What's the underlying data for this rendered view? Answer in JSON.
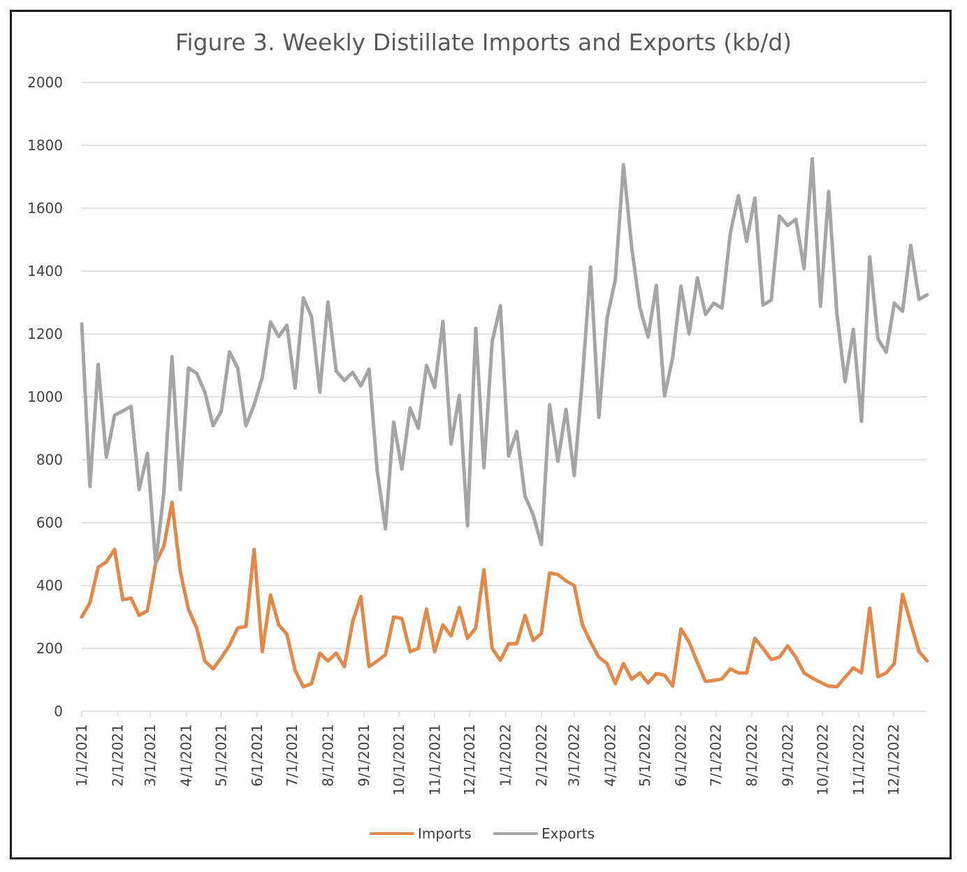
{
  "chart_data": {
    "type": "line",
    "title": "Figure 3. Weekly Distillate Imports and Exports (kb/d)",
    "xlabel": "",
    "ylabel": "",
    "ylim": [
      0,
      2000
    ],
    "yticks": [
      0,
      200,
      400,
      600,
      800,
      1000,
      1200,
      1400,
      1600,
      1800,
      2000
    ],
    "x_start_week": 0,
    "x_end_week": 104,
    "x_tick_labels": [
      {
        "label": "1/1/2021",
        "week": 0
      },
      {
        "label": "2/1/2021",
        "week": 4.43
      },
      {
        "label": "3/1/2021",
        "week": 8.43
      },
      {
        "label": "4/1/2021",
        "week": 12.86
      },
      {
        "label": "5/1/2021",
        "week": 17.14
      },
      {
        "label": "6/1/2021",
        "week": 21.57
      },
      {
        "label": "7/1/2021",
        "week": 25.86
      },
      {
        "label": "8/1/2021",
        "week": 30.29
      },
      {
        "label": "9/1/2021",
        "week": 34.71
      },
      {
        "label": "10/1/2021",
        "week": 39.0
      },
      {
        "label": "11/1/2021",
        "week": 43.43
      },
      {
        "label": "12/1/2021",
        "week": 47.71
      },
      {
        "label": "1/1/2022",
        "week": 52.14
      },
      {
        "label": "2/1/2022",
        "week": 56.57
      },
      {
        "label": "3/1/2022",
        "week": 60.57
      },
      {
        "label": "4/1/2022",
        "week": 65.0
      },
      {
        "label": "5/1/2022",
        "week": 69.29
      },
      {
        "label": "6/1/2022",
        "week": 73.71
      },
      {
        "label": "7/1/2022",
        "week": 78.0
      },
      {
        "label": "8/1/2022",
        "week": 82.43
      },
      {
        "label": "9/1/2022",
        "week": 86.86
      },
      {
        "label": "10/1/2022",
        "week": 91.14
      },
      {
        "label": "11/1/2022",
        "week": 95.57
      },
      {
        "label": "12/1/2022",
        "week": 99.86
      }
    ],
    "series": [
      {
        "name": "Imports",
        "color": "#e0894a",
        "values": [
          300,
          345,
          458,
          475,
          515,
          355,
          360,
          305,
          320,
          470,
          525,
          665,
          445,
          325,
          265,
          160,
          135,
          170,
          210,
          265,
          270,
          515,
          190,
          370,
          275,
          245,
          130,
          78,
          88,
          185,
          160,
          185,
          142,
          285,
          365,
          142,
          160,
          180,
          300,
          295,
          190,
          200,
          325,
          190,
          275,
          240,
          330,
          232,
          265,
          450,
          200,
          162,
          215,
          215,
          305,
          225,
          248,
          440,
          435,
          415,
          400,
          275,
          220,
          172,
          152,
          88,
          152,
          102,
          122,
          90,
          120,
          115,
          80,
          262,
          220,
          155,
          95,
          98,
          103,
          135,
          122,
          122,
          232,
          200,
          165,
          172,
          208,
          172,
          122,
          106,
          92,
          80,
          78,
          108,
          138,
          122,
          328,
          110,
          122,
          152,
          372,
          280,
          190,
          160
        ]
      },
      {
        "name": "Exports",
        "color": "#a5a5a5",
        "values": [
          1232,
          715,
          1103,
          808,
          942,
          955,
          970,
          705,
          820,
          470,
          695,
          1128,
          705,
          1092,
          1075,
          1015,
          908,
          955,
          1143,
          1092,
          908,
          975,
          1062,
          1238,
          1192,
          1228,
          1028,
          1315,
          1255,
          1015,
          1302,
          1082,
          1052,
          1078,
          1035,
          1088,
          765,
          580,
          920,
          770,
          965,
          900,
          1100,
          1030,
          1240,
          850,
          1005,
          590,
          1218,
          775,
          1175,
          1290,
          812,
          890,
          685,
          625,
          530,
          975,
          795,
          960,
          750,
          1060,
          1413,
          935,
          1250,
          1372,
          1738,
          1475,
          1285,
          1190,
          1355,
          1003,
          1125,
          1352,
          1200,
          1378,
          1262,
          1298,
          1282,
          1518,
          1640,
          1495,
          1632,
          1292,
          1308,
          1575,
          1545,
          1565,
          1408,
          1757,
          1288,
          1653,
          1265,
          1048,
          1215,
          922,
          1445,
          1185,
          1142,
          1298,
          1272,
          1482,
          1310,
          1325
        ]
      }
    ],
    "legend": [
      "Imports",
      "Exports"
    ],
    "legend_position": "bottom",
    "grid": true
  }
}
